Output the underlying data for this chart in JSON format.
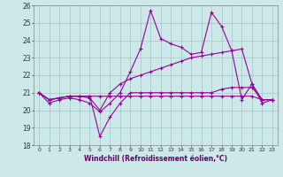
{
  "xlabel": "Windchill (Refroidissement éolien,°C)",
  "background_color": "#cce8e8",
  "grid_color": "#aacccc",
  "line_color": "#990099",
  "x": [
    0,
    1,
    2,
    3,
    4,
    5,
    6,
    7,
    8,
    9,
    10,
    11,
    12,
    13,
    14,
    15,
    16,
    17,
    18,
    19,
    20,
    21,
    22,
    23
  ],
  "series1": [
    21.0,
    20.4,
    20.6,
    20.7,
    20.6,
    20.4,
    19.9,
    20.4,
    21.0,
    22.2,
    23.5,
    25.7,
    24.1,
    23.8,
    23.6,
    23.2,
    23.3,
    25.6,
    24.8,
    23.4,
    20.6,
    21.5,
    20.4,
    20.6
  ],
  "series2": [
    21.0,
    20.6,
    20.7,
    20.8,
    20.8,
    20.8,
    18.5,
    19.6,
    20.4,
    21.0,
    21.0,
    21.0,
    21.0,
    21.0,
    21.0,
    21.0,
    21.0,
    21.0,
    21.2,
    21.3,
    21.3,
    21.3,
    20.6,
    20.6
  ],
  "series3": [
    21.0,
    20.6,
    20.7,
    20.8,
    20.8,
    20.7,
    20.0,
    21.0,
    21.5,
    21.8,
    22.0,
    22.2,
    22.4,
    22.6,
    22.8,
    23.0,
    23.1,
    23.2,
    23.3,
    23.4,
    23.5,
    21.5,
    20.6,
    20.6
  ],
  "series4": [
    21.0,
    20.6,
    20.7,
    20.8,
    20.8,
    20.8,
    20.8,
    20.8,
    20.8,
    20.8,
    20.8,
    20.8,
    20.8,
    20.8,
    20.8,
    20.8,
    20.8,
    20.8,
    20.8,
    20.8,
    20.8,
    20.8,
    20.6,
    20.6
  ],
  "ylim": [
    18,
    26
  ],
  "yticks": [
    18,
    19,
    20,
    21,
    22,
    23,
    24,
    25,
    26
  ],
  "xticks": [
    0,
    1,
    2,
    3,
    4,
    5,
    6,
    7,
    8,
    9,
    10,
    11,
    12,
    13,
    14,
    15,
    16,
    17,
    18,
    19,
    20,
    21,
    22,
    23
  ]
}
